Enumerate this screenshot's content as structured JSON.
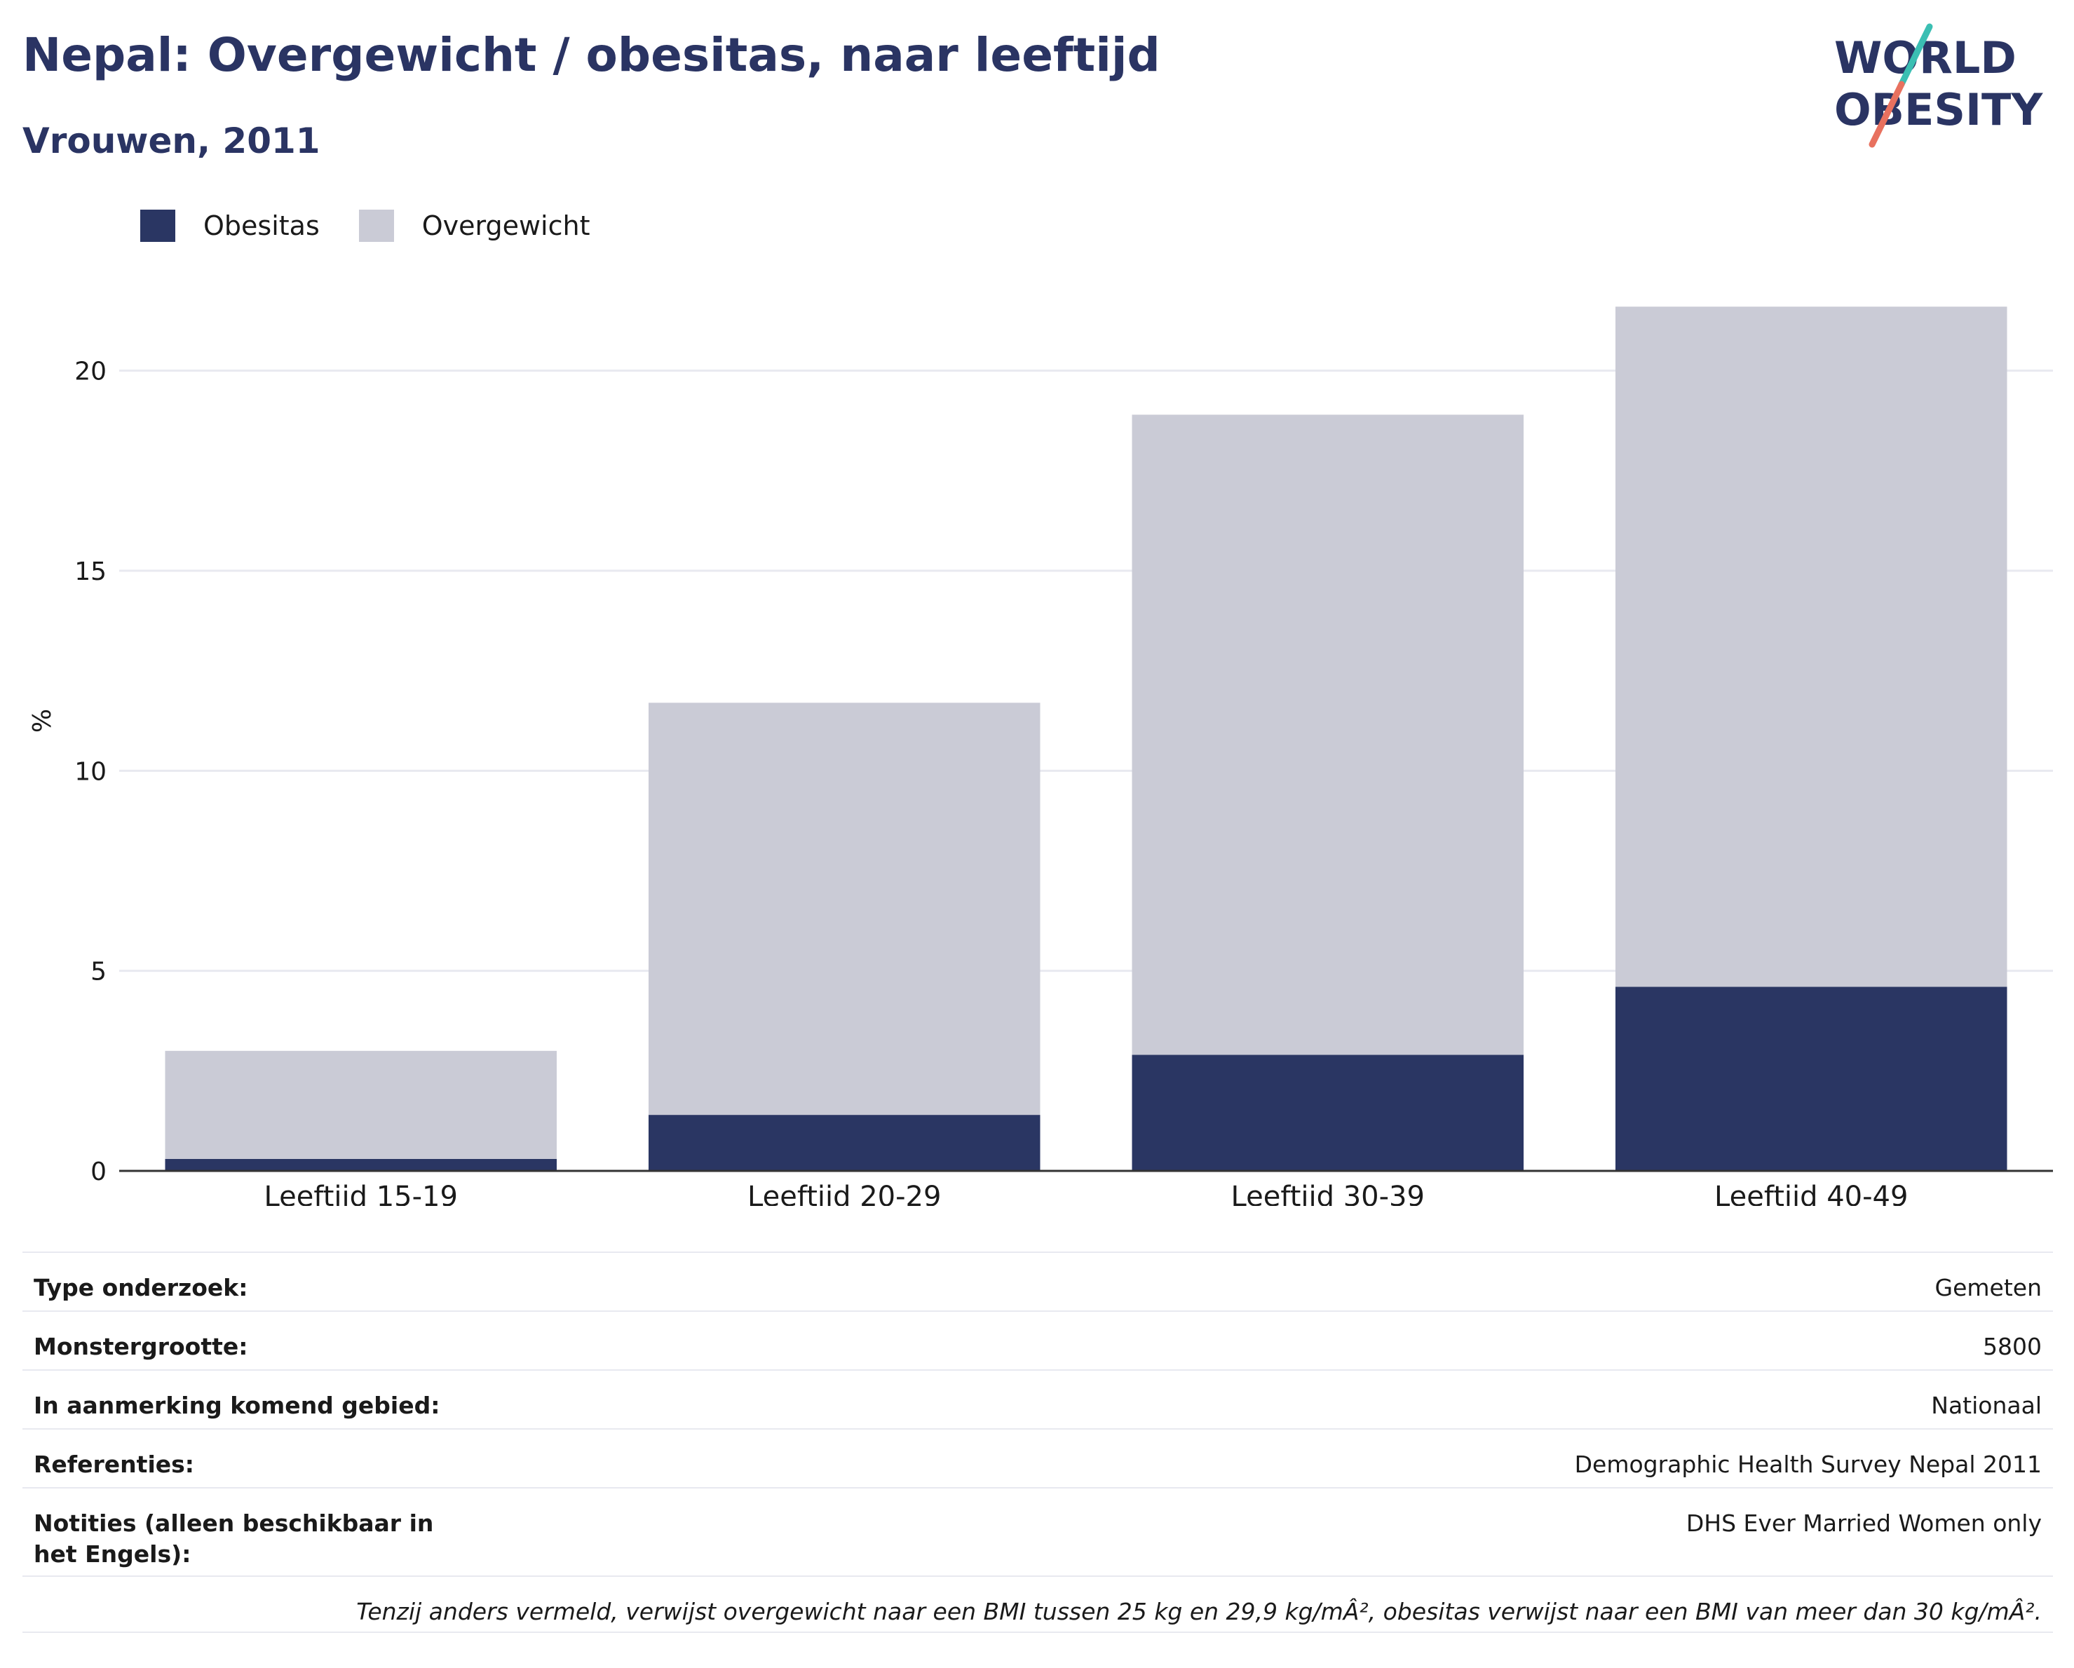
{
  "header": {
    "title": "Nepal: Overgewicht / obesitas, naar leeftijd",
    "subtitle": "Vrouwen, 2011",
    "logo_line1": "WORLD",
    "logo_line2": "OBESITY"
  },
  "colors": {
    "obesitas": "#2a3663",
    "overgewicht": "#cacbd6",
    "text": "#2a3463",
    "grid": "#e8e9f0",
    "logo_teal": "#3bbfb3",
    "logo_coral": "#e8715f"
  },
  "chart_data": {
    "type": "bar",
    "stacked": true,
    "categories": [
      "Leeftijd 15-19",
      "Leeftijd 20-29",
      "Leeftijd 30-39",
      "Leeftijd 40-49"
    ],
    "series": [
      {
        "name": "Obesitas",
        "values": [
          0.3,
          1.4,
          2.9,
          4.6
        ]
      },
      {
        "name": "Overgewicht",
        "values": [
          2.7,
          10.3,
          16.0,
          17.0
        ]
      }
    ],
    "ylabel": "%",
    "ylim": [
      0,
      22.5
    ],
    "yticks": [
      0,
      5,
      10,
      15,
      20
    ],
    "grid": true,
    "legend_position": "top-left"
  },
  "info": {
    "rows": [
      {
        "label": "Type onderzoek:",
        "value": "Gemeten"
      },
      {
        "label": "Monstergrootte:",
        "value": "5800"
      },
      {
        "label": "In aanmerking komend gebied:",
        "value": "Nationaal"
      },
      {
        "label": "Referenties:",
        "value": "Demographic Health Survey Nepal 2011"
      },
      {
        "label": "Notities (alleen beschikbaar in het Engels):",
        "value": "DHS Ever Married Women only"
      }
    ],
    "footnote": "Tenzij anders vermeld, verwijst overgewicht naar een BMI tussen 25 kg en 29,9 kg/mÂ², obesitas verwijst naar een BMI van meer dan 30 kg/mÂ²."
  }
}
